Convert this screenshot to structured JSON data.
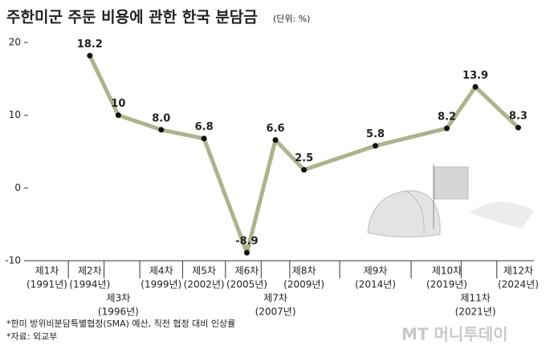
{
  "chart_data": {
    "type": "line",
    "title": "주한미군 주둔 비용에 관한 한국 분담금",
    "unit": "(단위: %)",
    "categories": [
      "제1차",
      "제2차",
      "제3차",
      "제4차",
      "제5차",
      "제6차",
      "제7차",
      "제8차",
      "제9차",
      "제10차",
      "제11차",
      "제12차"
    ],
    "x": [
      1991,
      1994,
      1996,
      1999,
      2002,
      2005,
      2007,
      2009,
      2014,
      2019,
      2021,
      2024
    ],
    "xticks": [
      {
        "value": 1991,
        "label": "(1991년)"
      },
      {
        "value": 1994,
        "label": "(1994년)"
      },
      {
        "value": 1996,
        "label": "(1996년)"
      },
      {
        "value": 1999,
        "label": "(1999년)"
      },
      {
        "value": 2002,
        "label": "(2002년)"
      },
      {
        "value": 2005,
        "label": "(2005년)"
      },
      {
        "value": 2007,
        "label": "(2007년)"
      },
      {
        "value": 2009,
        "label": "(2009년)"
      },
      {
        "value": 2014,
        "label": "(2014년)"
      },
      {
        "value": 2019,
        "label": "(2019년)"
      },
      {
        "value": 2021,
        "label": "(2021년)"
      },
      {
        "value": 2024,
        "label": "(2024년)"
      }
    ],
    "values": [
      null,
      18.2,
      10,
      8.0,
      6.8,
      -8.9,
      6.6,
      2.5,
      5.8,
      8.2,
      13.9,
      8.3
    ],
    "value_labels": [
      null,
      "18.2",
      "10",
      "8.0",
      "6.8",
      "-8.9",
      "6.6",
      "2.5",
      "5.8",
      "8.2",
      "13.9",
      "8.3"
    ],
    "color": "#adb38c",
    "xlim": [
      1989.4,
      2025.1
    ],
    "ylim": [
      -10,
      20
    ],
    "yticks": [
      -10,
      0,
      10,
      20
    ],
    "footnotes": [
      "*한미 방위비분담특별협정(SMA) 예산, 직전 협정 대비 인상률",
      "*자료: 외교부"
    ],
    "source_logo": "MT 머니투데이"
  }
}
